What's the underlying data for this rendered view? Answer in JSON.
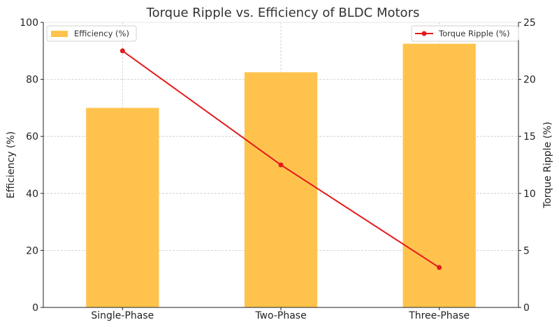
{
  "chart_data": {
    "type": "bar+line",
    "title": "Torque Ripple vs. Efficiency of BLDC Motors",
    "categories": [
      "Single-Phase",
      "Two-Phase",
      "Three-Phase"
    ],
    "left_axis": {
      "label": "Efficiency (%)",
      "ylim": [
        0,
        100
      ],
      "ticks": [
        0,
        20,
        40,
        60,
        80,
        100
      ]
    },
    "right_axis": {
      "label": "Torque Ripple (%)",
      "ylim": [
        0,
        25
      ],
      "ticks": [
        0,
        5,
        10,
        15,
        20,
        25
      ]
    },
    "series": [
      {
        "name": "Efficiency (%)",
        "kind": "bar",
        "axis": "left",
        "color": "#FFC34D",
        "values": [
          70,
          82.5,
          92.5
        ]
      },
      {
        "name": "Torque Ripple (%)",
        "kind": "line",
        "axis": "right",
        "color": "#E31A1C",
        "marker": "circle",
        "values": [
          22.5,
          12.5,
          3.5
        ]
      }
    ],
    "grid": true,
    "legend": {
      "bar_position": "top-left",
      "line_position": "top-right"
    }
  }
}
